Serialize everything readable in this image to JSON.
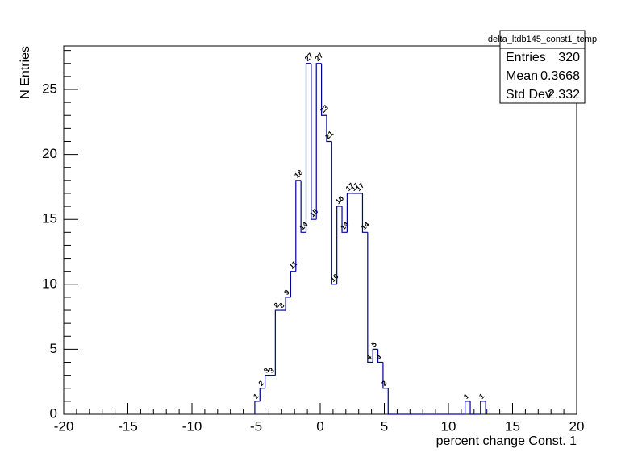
{
  "chart_data": {
    "type": "histogram",
    "x_label": "percent change Const. 1",
    "y_label": "N Entries",
    "bins": [
      -5.1,
      -4.7,
      -4.3,
      -3.9,
      -3.5,
      -3.1,
      -2.7,
      -2.3,
      -1.9,
      -1.5,
      -1.1,
      -0.7,
      -0.3,
      0.1,
      0.5,
      0.9,
      1.3,
      1.7,
      2.1,
      2.5,
      2.9,
      3.3,
      3.7,
      4.1,
      4.5,
      4.9,
      5.3,
      5.7,
      6.1,
      6.5,
      6.9,
      7.3,
      7.7,
      8.1,
      8.5,
      8.9,
      9.3,
      9.7,
      10.1,
      10.5,
      10.9,
      11.3,
      11.7,
      12.1,
      12.5,
      12.9
    ],
    "counts": [
      1,
      2,
      3,
      3,
      8,
      8,
      9,
      11,
      18,
      14,
      27,
      15,
      27,
      23,
      21,
      10,
      16,
      14,
      17,
      17,
      17,
      14,
      4,
      5,
      4,
      2,
      0,
      0,
      0,
      0,
      0,
      0,
      0,
      0,
      0,
      0,
      0,
      0,
      0,
      0,
      0,
      1,
      0,
      0,
      1
    ],
    "color": "#000099",
    "xlim": [
      -20,
      20
    ],
    "xticks": [
      -20,
      -15,
      -10,
      -5,
      0,
      5,
      10,
      15,
      20
    ],
    "ylim": [
      0,
      28.35
    ],
    "yticks": [
      0,
      5,
      10,
      15,
      20,
      25
    ],
    "stats": {
      "title": "delta_ltdb145_const1_temp",
      "rows": [
        [
          "Entries",
          320
        ],
        [
          "Mean",
          0.3668
        ],
        [
          "Std Dev",
          2.332
        ]
      ]
    }
  }
}
